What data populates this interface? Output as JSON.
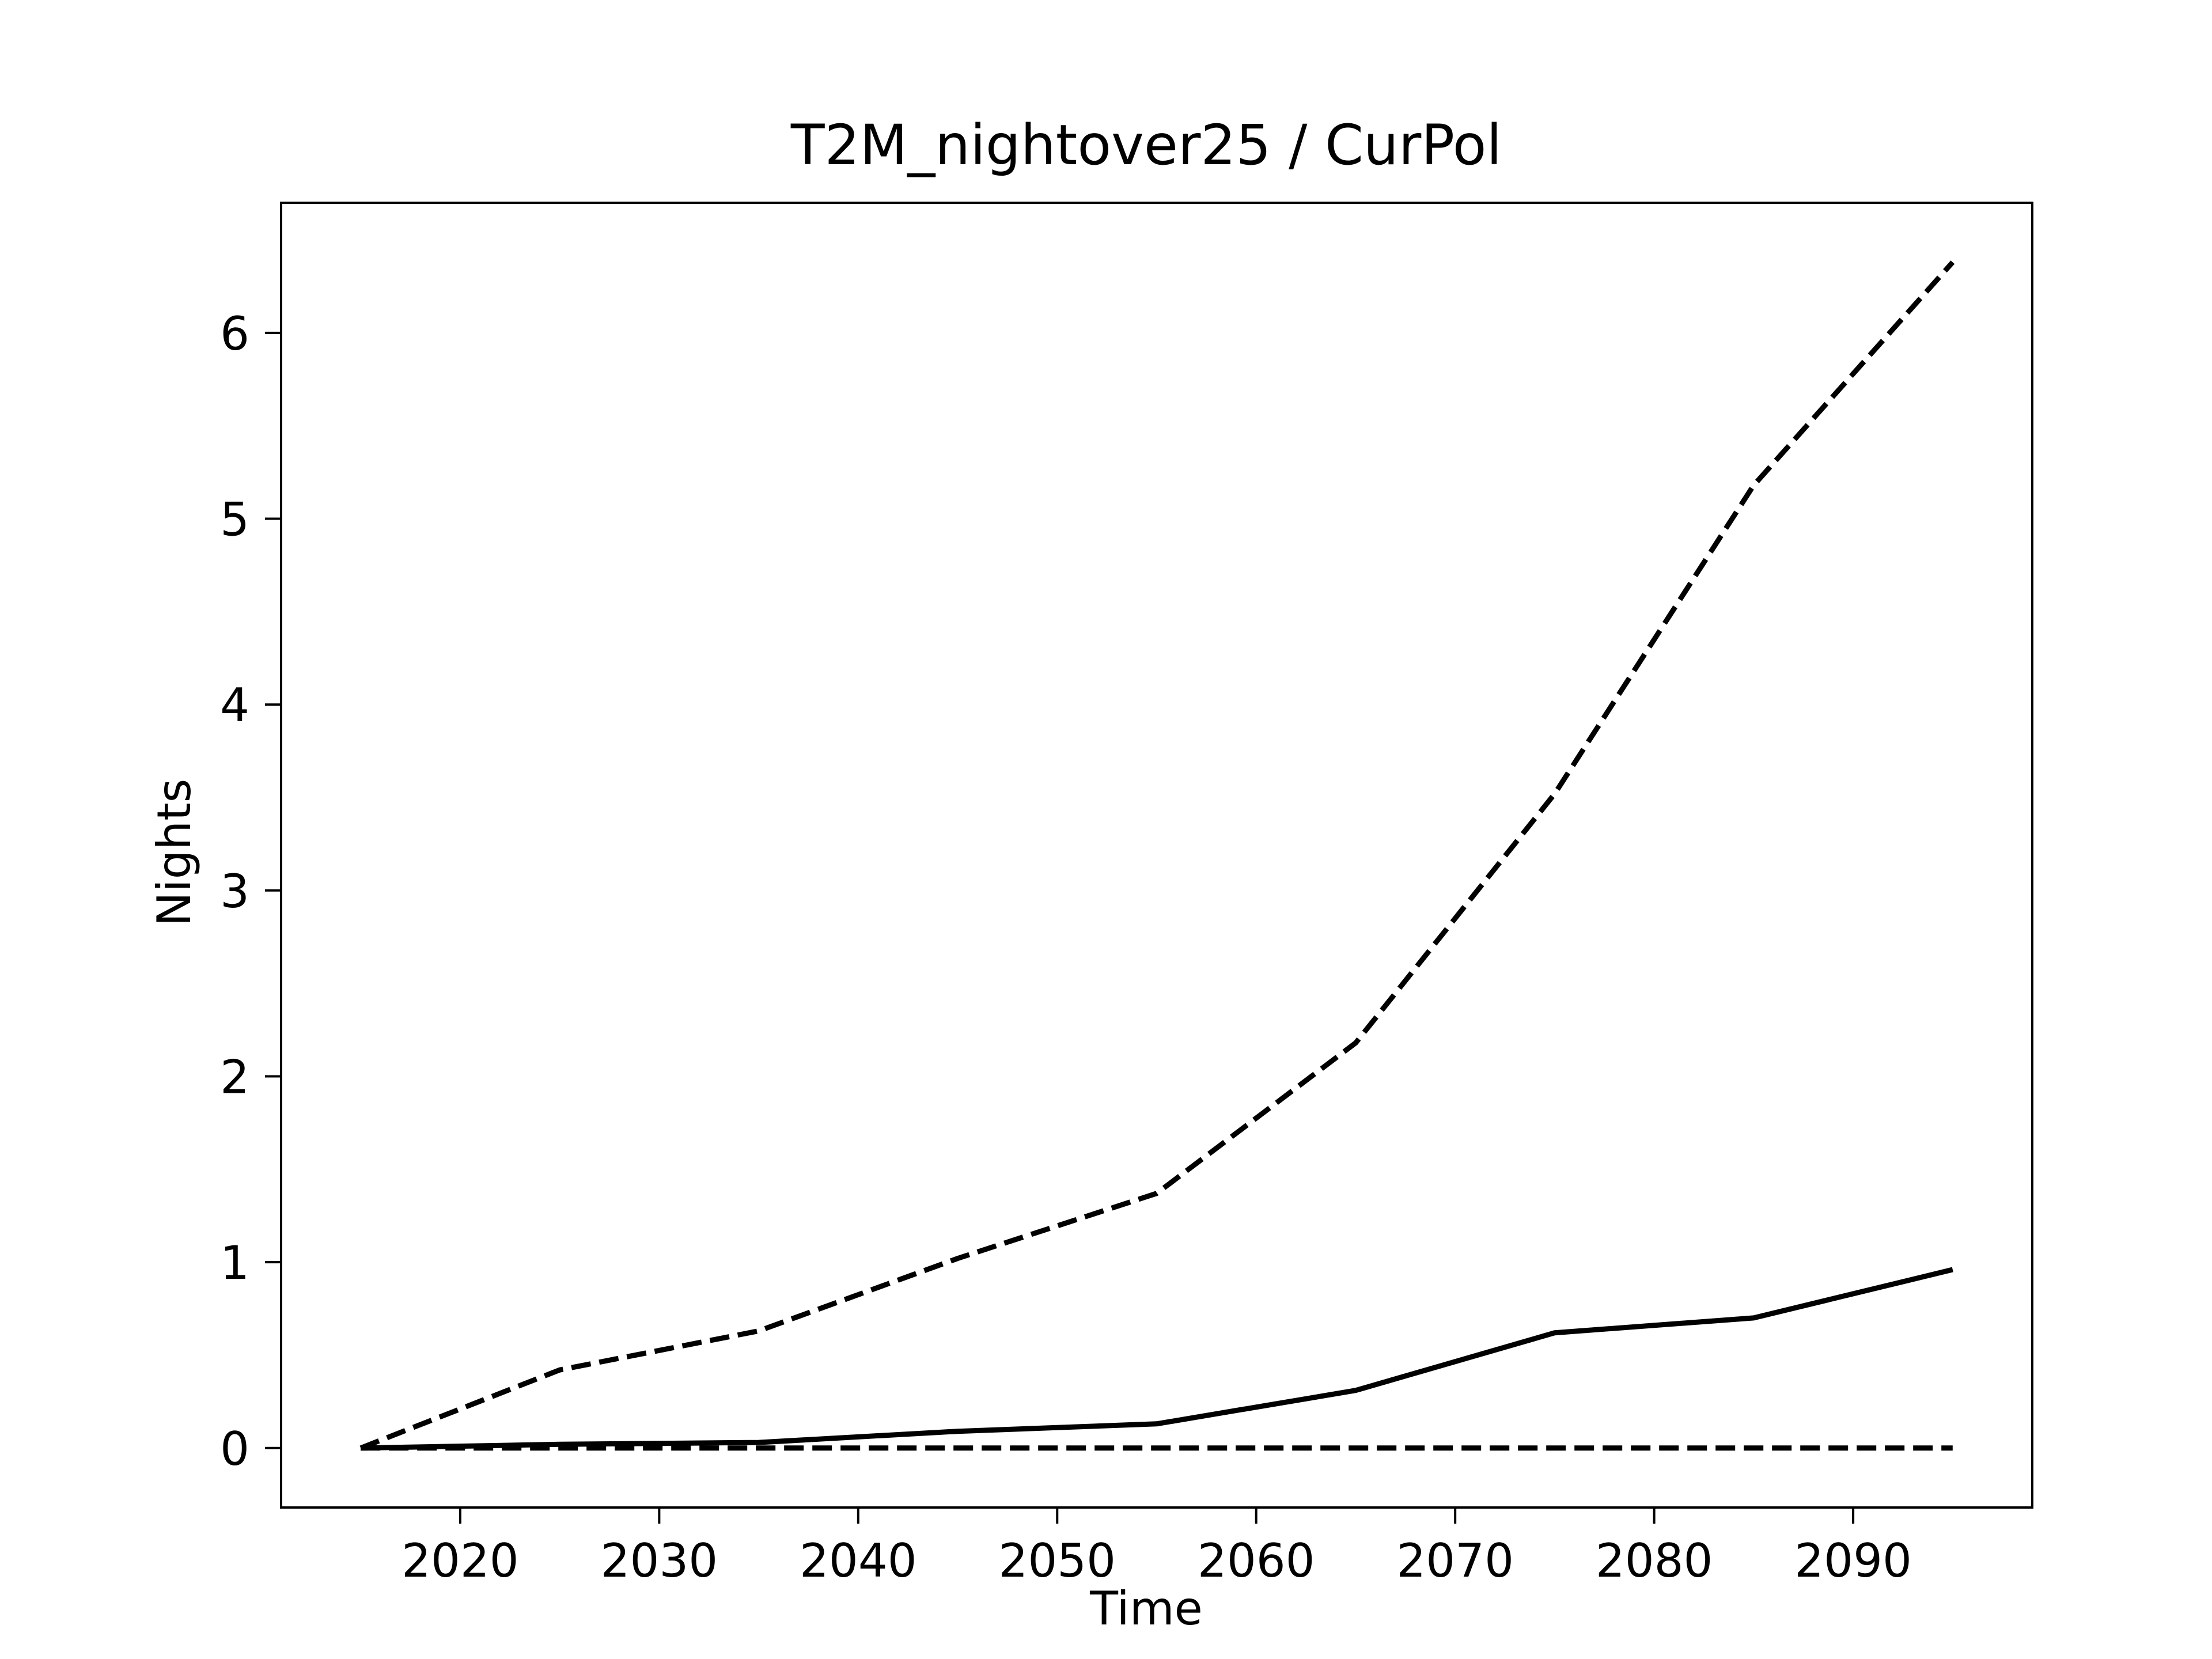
{
  "chart_data": {
    "type": "line",
    "title": "T2M_nightover25 / CurPol",
    "xlabel": "Time",
    "ylabel": "Nights",
    "x": [
      2015,
      2025,
      2035,
      2045,
      2055,
      2065,
      2075,
      2085,
      2095
    ],
    "xlim": [
      2011,
      2099
    ],
    "ylim": [
      -0.32,
      6.7
    ],
    "xticks": [
      2020,
      2030,
      2040,
      2050,
      2060,
      2070,
      2080,
      2090
    ],
    "yticks": [
      0,
      1,
      2,
      3,
      4,
      5,
      6
    ],
    "grid": false,
    "legend": "none",
    "series": [
      {
        "style": "dashed",
        "values": [
          0,
          0.42,
          0.63,
          1.02,
          1.37,
          2.18,
          3.52,
          5.18,
          6.38
        ]
      },
      {
        "style": "solid",
        "values": [
          0,
          0.02,
          0.03,
          0.09,
          0.13,
          0.31,
          0.62,
          0.7,
          0.96
        ]
      },
      {
        "style": "dashed",
        "values": [
          0,
          0,
          0,
          0,
          0,
          0,
          0,
          0,
          0
        ]
      }
    ],
    "colors": {
      "line": "#000000",
      "axes": "#000000",
      "background": "#ffffff"
    }
  }
}
